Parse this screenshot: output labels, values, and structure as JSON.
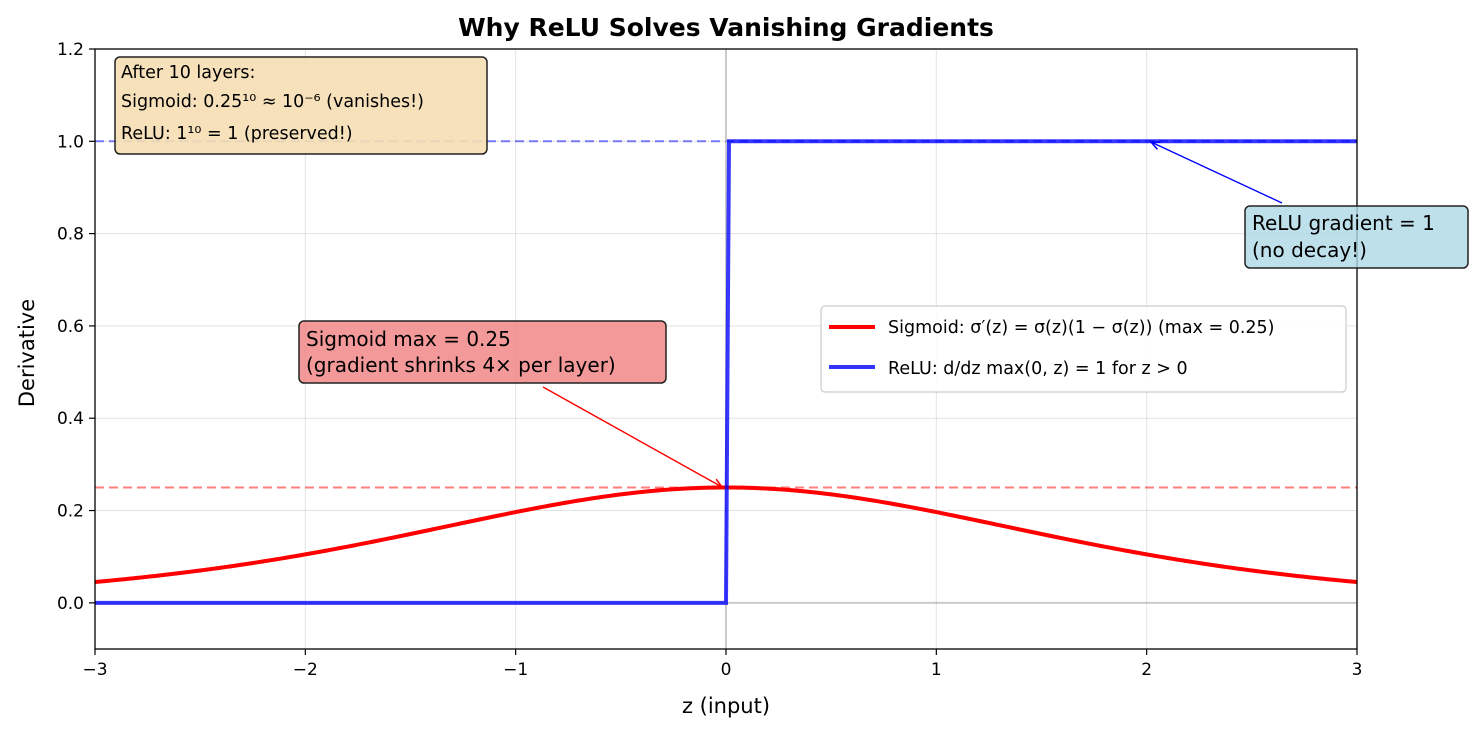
{
  "chart_data": {
    "type": "line",
    "title": "Why ReLU Solves Vanishing Gradients",
    "xlabel": "z (input)",
    "ylabel": "Derivative",
    "xlim": [
      -3,
      3
    ],
    "ylim": [
      -0.1,
      1.2
    ],
    "xticks": [
      -3,
      -2,
      -1,
      0,
      1,
      2,
      3
    ],
    "xtick_labels": [
      "−3",
      "−2",
      "−1",
      "0",
      "1",
      "2",
      "3"
    ],
    "yticks": [
      0.0,
      0.2,
      0.4,
      0.6,
      0.8,
      1.0,
      1.2
    ],
    "ytick_labels": [
      "0.0",
      "0.2",
      "0.4",
      "0.6",
      "0.8",
      "1.0",
      "1.2"
    ],
    "grid": true,
    "legend_position": "center-right",
    "series": [
      {
        "name": "Sigmoid: σ′(z) = σ(z)(1 − σ(z)) (max = 0.25)",
        "function": "sigmoid_derivative",
        "x_range": [
          -3,
          3
        ],
        "color": "#ff0000"
      },
      {
        "name": "ReLU: d/dz max(0, z) = 1 for z > 0",
        "x": [
          -3,
          0,
          0,
          3
        ],
        "y": [
          0,
          0,
          1,
          1
        ],
        "color": "#0000ff"
      }
    ],
    "reference_lines": [
      {
        "y": 1.0,
        "color": "#0000ff",
        "style": "dashed"
      },
      {
        "y": 0.25,
        "color": "#ff0000",
        "style": "dashed"
      },
      {
        "x": 0,
        "color": "#b0b0b0",
        "style": "solid"
      },
      {
        "y": 0,
        "color": "#b0b0b0",
        "style": "solid"
      }
    ],
    "annotations": [
      {
        "lines": [
          "Sigmoid max = 0.25",
          "(gradient shrinks 4× per layer)"
        ],
        "point": [
          0,
          0.25
        ],
        "text_anchor": [
          -0.86,
          0.47
        ],
        "box_color": "#f08080",
        "arrow_color": "#ff0000"
      },
      {
        "lines": [
          "ReLU gradient = 1",
          "(no decay!)"
        ],
        "point": [
          2.0,
          1.0
        ],
        "text_anchor": [
          2.65,
          0.86
        ],
        "box_color": "#add8e6",
        "arrow_color": "#0000ff"
      }
    ],
    "info_box": {
      "lines": [
        "After 10 layers:",
        "Sigmoid: 0.25¹⁰ ≈ 10⁻⁶ (vanishes!)",
        "ReLU: 1¹⁰ = 1 (preserved!)"
      ],
      "box_color": "#f5deb3",
      "position": "top-left"
    }
  }
}
